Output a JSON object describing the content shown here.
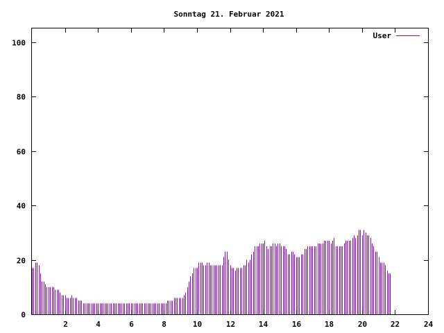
{
  "chart_data": {
    "type": "bar",
    "title": "Sonntag 21. Februar 2021",
    "xlabel": "",
    "ylabel": "",
    "xlim": [
      0,
      24
    ],
    "ylim": [
      0,
      105
    ],
    "x_ticks": [
      2,
      4,
      6,
      8,
      10,
      12,
      14,
      16,
      18,
      20,
      22,
      24
    ],
    "y_ticks": [
      0,
      20,
      40,
      60,
      80,
      100
    ],
    "grid": false,
    "legend_position": "top-right",
    "series": [
      {
        "name": "User",
        "color": "#9400d3",
        "sample_interval_hours": 0.1,
        "values": [
          17,
          17,
          19,
          19,
          18,
          15,
          12,
          12,
          11,
          10,
          10,
          10,
          10,
          10,
          9,
          9,
          9,
          8,
          7,
          7,
          7,
          6,
          6,
          6,
          7,
          6,
          6,
          6,
          5,
          5,
          5,
          4,
          4,
          4,
          4,
          4,
          4,
          4,
          4,
          4,
          4,
          4,
          4,
          4,
          4,
          4,
          4,
          4,
          4,
          4,
          4,
          4,
          4,
          4,
          4,
          4,
          4,
          4,
          4,
          4,
          4,
          4,
          4,
          4,
          4,
          4,
          4,
          4,
          4,
          4,
          4,
          4,
          4,
          4,
          4,
          4,
          4,
          4,
          4,
          4,
          4,
          4,
          5,
          5,
          5,
          5,
          6,
          6,
          6,
          6,
          6,
          6,
          7,
          8,
          10,
          12,
          14,
          15,
          17,
          17,
          17,
          19,
          19,
          19,
          18,
          18,
          19,
          19,
          18,
          18,
          18,
          18,
          18,
          18,
          18,
          18,
          21,
          23,
          23,
          20,
          18,
          17,
          17,
          16,
          17,
          17,
          17,
          17,
          18,
          18,
          20,
          19,
          20,
          22,
          23,
          25,
          25,
          25,
          26,
          26,
          26,
          27,
          25,
          24,
          25,
          25,
          26,
          26,
          25,
          26,
          26,
          25,
          25,
          25,
          24,
          22,
          22,
          23,
          23,
          22,
          21,
          21,
          21,
          22,
          22,
          24,
          24,
          25,
          25,
          25,
          25,
          25,
          25,
          26,
          26,
          26,
          26,
          27,
          27,
          27,
          27,
          26,
          27,
          28,
          25,
          25,
          25,
          25,
          25,
          26,
          27,
          27,
          27,
          27,
          28,
          29,
          28,
          29,
          31,
          31,
          29,
          31,
          30,
          29,
          29,
          28,
          26,
          25,
          23,
          23,
          21,
          19,
          19,
          19,
          18,
          16,
          15,
          15
        ]
      }
    ]
  }
}
